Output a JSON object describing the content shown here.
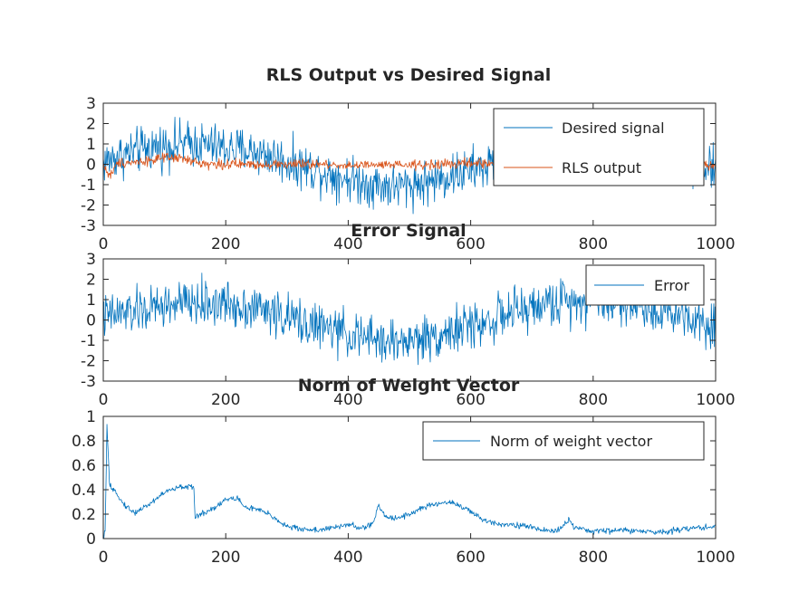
{
  "chart_data": [
    {
      "type": "line",
      "title": "RLS Output vs Desired Signal",
      "xlabel": "",
      "ylabel": "",
      "xlim": [
        0,
        1000
      ],
      "ylim": [
        -3,
        3
      ],
      "xticks": [
        "0",
        "200",
        "400",
        "600",
        "800",
        "1000"
      ],
      "yticks": [
        "-3",
        "-2",
        "-1",
        "0",
        "1",
        "2",
        "3"
      ],
      "grid": false,
      "legend_position": "top-right",
      "series": [
        {
          "name": "Desired signal",
          "color": "#0072bd",
          "x": [
            0,
            25,
            50,
            75,
            100,
            125,
            150,
            175,
            200,
            225,
            250,
            275,
            300,
            325,
            350,
            375,
            400,
            425,
            450,
            475,
            500,
            525,
            550,
            575,
            600,
            625,
            650,
            675,
            700,
            725,
            750,
            775,
            800,
            825,
            850,
            875,
            900,
            925,
            950,
            975,
            1000
          ],
          "y": [
            0.1,
            0.4,
            0.6,
            0.8,
            0.9,
            1.0,
            1.0,
            0.9,
            0.8,
            0.7,
            0.6,
            0.4,
            0.1,
            -0.1,
            -0.3,
            -0.5,
            -0.7,
            -0.9,
            -1.0,
            -1.1,
            -1.0,
            -0.9,
            -0.7,
            -0.5,
            -0.3,
            -0.1,
            0.2,
            0.4,
            0.6,
            0.8,
            0.9,
            1.0,
            1.0,
            0.9,
            0.8,
            0.7,
            0.5,
            0.4,
            0.3,
            0.0,
            -0.3
          ],
          "noise": 0.55
        },
        {
          "name": "RLS output",
          "color": "#d95319",
          "x": [
            0,
            10,
            25,
            50,
            75,
            100,
            125,
            150,
            175,
            200,
            250,
            300,
            350,
            400,
            450,
            500,
            550,
            600,
            650,
            700,
            750,
            800,
            850,
            900,
            950,
            1000
          ],
          "y": [
            0.0,
            -0.6,
            0.1,
            0.1,
            0.2,
            0.3,
            0.3,
            0.1,
            0.0,
            0.0,
            0.0,
            0.0,
            0.0,
            -0.05,
            -0.05,
            -0.05,
            0.0,
            0.05,
            0.05,
            0.05,
            0.05,
            0.05,
            0.05,
            0.0,
            0.0,
            0.0
          ],
          "noise": 0.12
        }
      ]
    },
    {
      "type": "line",
      "title": "Error Signal",
      "xlabel": "",
      "ylabel": "",
      "xlim": [
        0,
        1000
      ],
      "ylim": [
        -3,
        3
      ],
      "xticks": [
        "0",
        "200",
        "400",
        "600",
        "800",
        "1000"
      ],
      "yticks": [
        "-3",
        "-2",
        "-1",
        "0",
        "1",
        "2",
        "3"
      ],
      "grid": false,
      "legend_position": "top-right",
      "series": [
        {
          "name": "Error",
          "color": "#0072bd",
          "x": [
            0,
            25,
            50,
            75,
            100,
            125,
            150,
            175,
            200,
            225,
            250,
            275,
            300,
            325,
            350,
            375,
            400,
            425,
            450,
            475,
            500,
            525,
            550,
            575,
            600,
            625,
            650,
            675,
            700,
            725,
            750,
            775,
            800,
            825,
            850,
            875,
            900,
            925,
            950,
            975,
            1000
          ],
          "y": [
            0.1,
            0.3,
            0.4,
            0.5,
            0.7,
            0.8,
            0.8,
            0.8,
            0.8,
            0.7,
            0.6,
            0.4,
            0.1,
            -0.1,
            -0.3,
            -0.5,
            -0.7,
            -0.9,
            -1.0,
            -1.1,
            -1.0,
            -0.9,
            -0.7,
            -0.5,
            -0.3,
            -0.1,
            0.2,
            0.4,
            0.6,
            0.8,
            0.9,
            1.0,
            1.0,
            0.9,
            0.8,
            0.7,
            0.5,
            0.4,
            0.3,
            0.0,
            -0.3
          ],
          "noise": 0.55
        }
      ]
    },
    {
      "type": "line",
      "title": "Norm of Weight Vector",
      "xlabel": "",
      "ylabel": "",
      "xlim": [
        0,
        1000
      ],
      "ylim": [
        0,
        1
      ],
      "xticks": [
        "0",
        "200",
        "400",
        "600",
        "800",
        "1000"
      ],
      "yticks": [
        "0",
        "0.2",
        "0.4",
        "0.6",
        "0.8",
        "1"
      ],
      "grid": false,
      "legend_position": "top-right",
      "series": [
        {
          "name": "Norm of weight vector",
          "color": "#0072bd",
          "x": [
            0,
            3,
            6,
            8,
            10,
            15,
            20,
            30,
            50,
            75,
            100,
            125,
            140,
            148,
            150,
            160,
            180,
            200,
            220,
            230,
            250,
            270,
            300,
            320,
            350,
            380,
            400,
            420,
            440,
            450,
            460,
            480,
            500,
            520,
            550,
            570,
            600,
            620,
            650,
            680,
            700,
            720,
            740,
            750,
            760,
            770,
            790,
            800,
            850,
            900,
            950,
            1000
          ],
          "y": [
            0.0,
            0.05,
            0.92,
            0.7,
            0.45,
            0.38,
            0.4,
            0.3,
            0.21,
            0.28,
            0.38,
            0.42,
            0.43,
            0.4,
            0.18,
            0.2,
            0.25,
            0.32,
            0.33,
            0.26,
            0.24,
            0.2,
            0.1,
            0.08,
            0.07,
            0.09,
            0.12,
            0.08,
            0.12,
            0.27,
            0.18,
            0.17,
            0.2,
            0.25,
            0.29,
            0.3,
            0.22,
            0.15,
            0.12,
            0.11,
            0.09,
            0.07,
            0.06,
            0.1,
            0.16,
            0.08,
            0.07,
            0.06,
            0.07,
            0.05,
            0.08,
            0.1
          ],
          "noise": 0.012
        }
      ]
    }
  ]
}
